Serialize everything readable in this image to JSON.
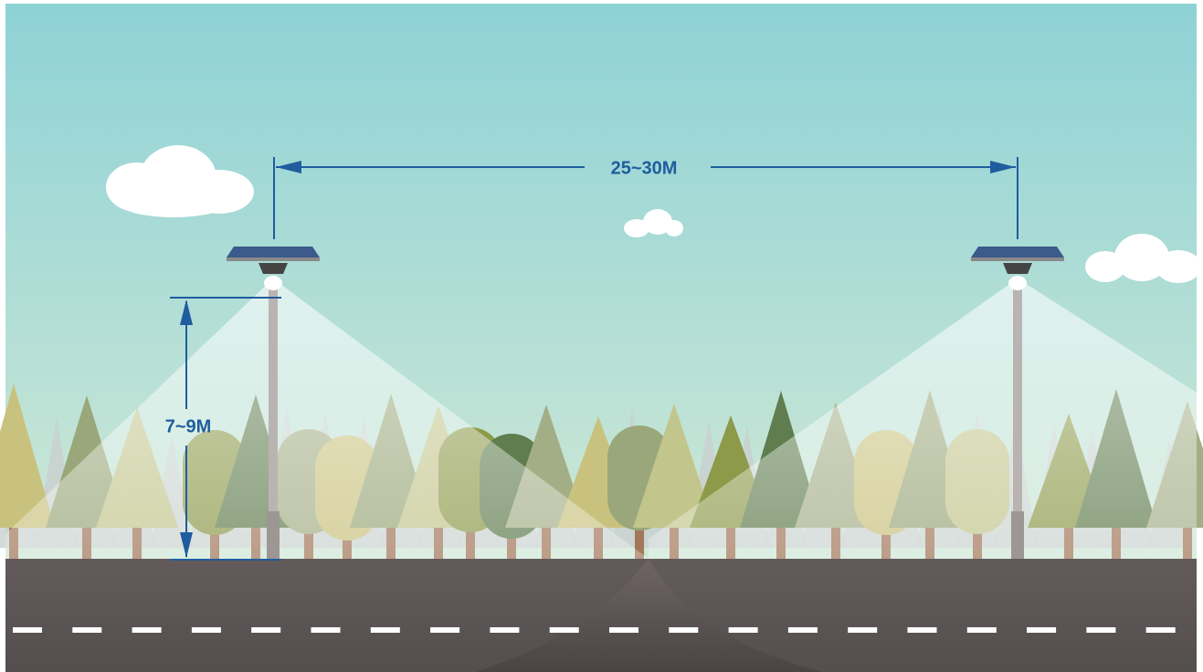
{
  "labels": {
    "spacing": "25~30M",
    "height": "7~9M"
  }
}
